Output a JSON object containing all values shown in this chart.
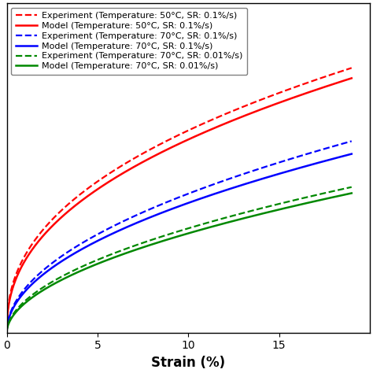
{
  "xlabel": "Strain (%)",
  "xlim": [
    0,
    20
  ],
  "x_ticks": [
    0,
    5,
    10,
    15
  ],
  "legend_entries": [
    "Experiment (Temperature: 50°C, SR: 0.1%/s)",
    "Model (Temperature: 50°C, SR: 0.1%/s)",
    "Experiment (Temperature: 70°C, SR: 0.1%/s)",
    "Model (Temperature: 70°C, SR: 0.1%/s)",
    "Experiment (Temperature: 70°C, SR: 0.01%/s)",
    "Model (Temperature: 70°C, SR: 0.01%/s)"
  ],
  "curve_params": [
    {
      "color": "#ff0000",
      "ls": "--",
      "lw": 1.6,
      "a": 1.05,
      "n": 0.42,
      "x_end": 19.0
    },
    {
      "color": "#ff0000",
      "ls": "-",
      "lw": 1.8,
      "a": 0.98,
      "n": 0.43,
      "x_end": 19.0
    },
    {
      "color": "#0000ff",
      "ls": "--",
      "lw": 1.6,
      "a": 0.6,
      "n": 0.5,
      "x_end": 19.0
    },
    {
      "color": "#0000ff",
      "ls": "-",
      "lw": 1.8,
      "a": 0.56,
      "n": 0.5,
      "x_end": 19.0
    },
    {
      "color": "#008800",
      "ls": "--",
      "lw": 1.6,
      "a": 0.43,
      "n": 0.52,
      "x_end": 19.0
    },
    {
      "color": "#008800",
      "ls": "-",
      "lw": 1.8,
      "a": 0.4,
      "n": 0.53,
      "x_end": 19.0
    }
  ],
  "ylim": [
    0,
    4.5
  ],
  "background_color": "#ffffff",
  "legend_fontsize": 8.0,
  "xlabel_fontsize": 12,
  "tick_fontsize": 10
}
